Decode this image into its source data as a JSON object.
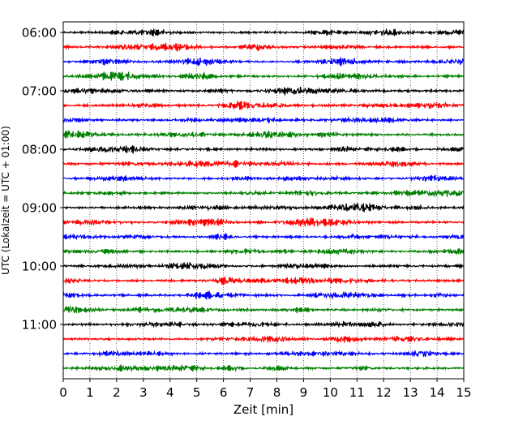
{
  "chart_data": {
    "type": "line",
    "subtype": "helicorder",
    "title": "",
    "xlabel": "Zeit  [min]",
    "ylabel": "UTC (Lokalzeit = UTC + 01:00)",
    "xlim": [
      0,
      15
    ],
    "x_ticks": [
      "0",
      "1",
      "2",
      "3",
      "4",
      "5",
      "6",
      "7",
      "8",
      "9",
      "10",
      "11",
      "12",
      "13",
      "14",
      "15"
    ],
    "y_tick_labels": [
      "06:00",
      "07:00",
      "08:00",
      "09:00",
      "10:00",
      "11:00"
    ],
    "trace_interval_minutes": 15,
    "first_trace_start": "06:00",
    "trace_start_times": [
      "06:00",
      "06:15",
      "06:30",
      "06:45",
      "07:00",
      "07:15",
      "07:30",
      "07:45",
      "08:00",
      "08:15",
      "08:30",
      "08:45",
      "09:00",
      "09:15",
      "09:30",
      "09:45",
      "10:00",
      "10:15",
      "10:30",
      "10:45",
      "11:00",
      "11:15",
      "11:30",
      "11:45"
    ],
    "trace_colors": [
      "#000000",
      "#ff0000",
      "#0000ff",
      "#008000"
    ],
    "grid": {
      "vertical": true,
      "style": "dotted"
    }
  }
}
